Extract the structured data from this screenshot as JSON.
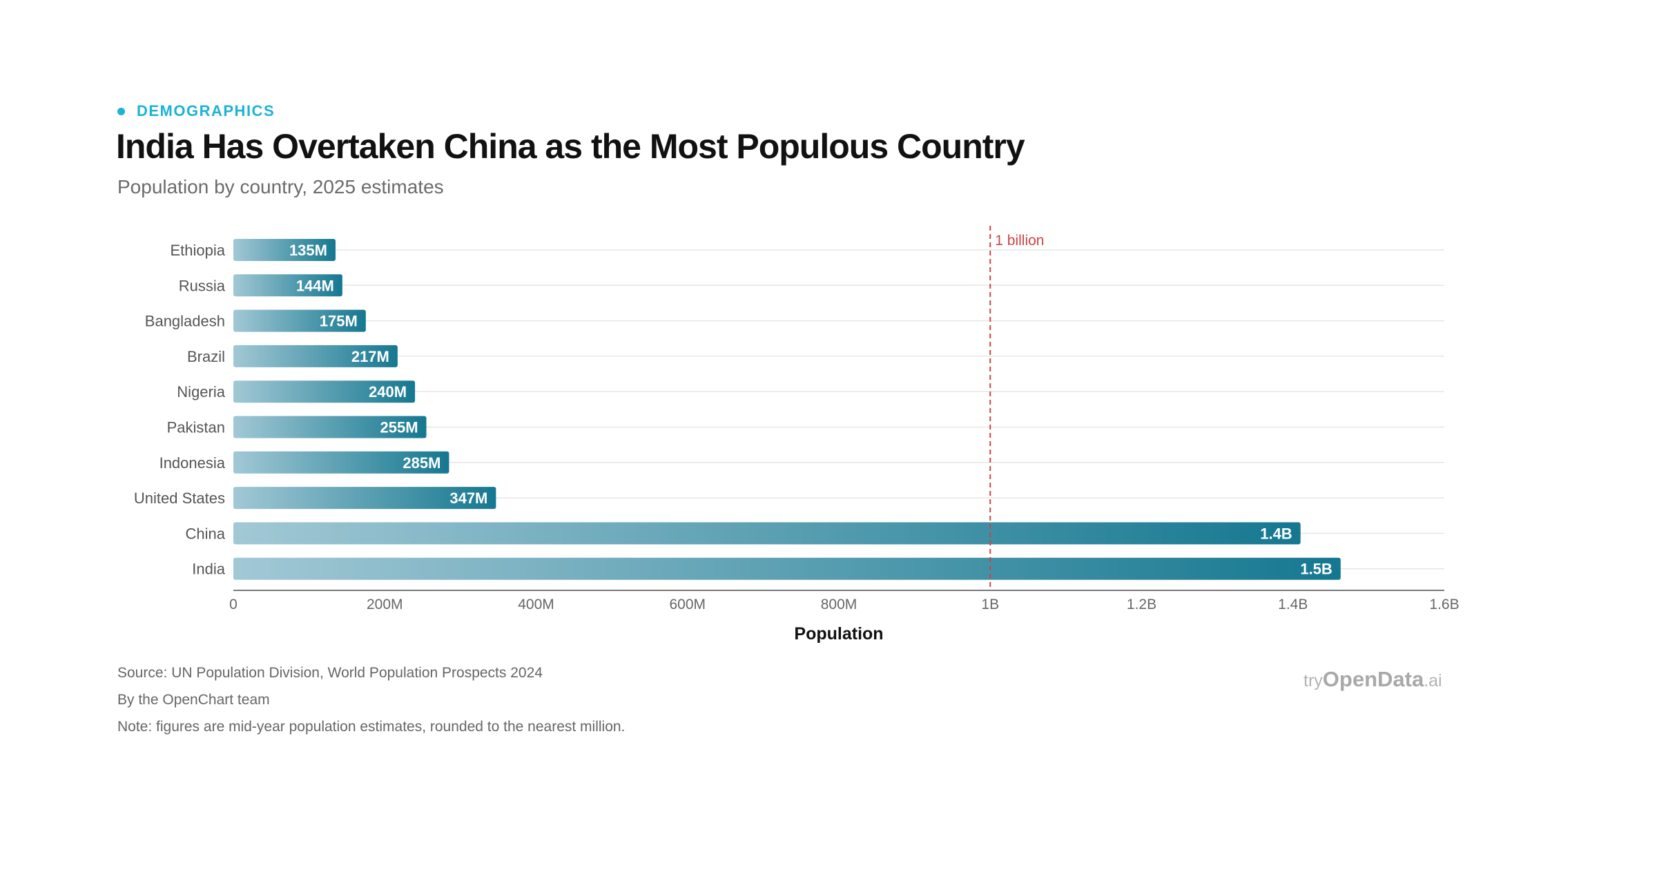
{
  "header": {
    "kicker": "DEMOGRAPHICS",
    "title": "India Has Overtaken China as the Most Populous Country",
    "subtitle": "Population by country, 2025 estimates"
  },
  "colors": {
    "accent": "#1bb3d6",
    "bar_start": "#a2c8d5",
    "bar_end": "#157890",
    "reference_line": "#cc4444"
  },
  "chart_data": {
    "type": "bar",
    "orientation": "horizontal",
    "categories": [
      "Ethiopia",
      "Russia",
      "Bangladesh",
      "Brazil",
      "Nigeria",
      "Pakistan",
      "Indonesia",
      "United States",
      "China",
      "India"
    ],
    "values": [
      135000000,
      144000000,
      175000000,
      217000000,
      240000000,
      255000000,
      285000000,
      347000000,
      1410000000,
      1463000000
    ],
    "value_labels": [
      "135M",
      "144M",
      "175M",
      "217M",
      "240M",
      "255M",
      "285M",
      "347M",
      "1.4B",
      "1.5B"
    ],
    "xlabel": "Population",
    "xlim": [
      0,
      1600000000
    ],
    "x_ticks": [
      0,
      200000000,
      400000000,
      600000000,
      800000000,
      1000000000,
      1200000000,
      1400000000,
      1600000000
    ],
    "x_tick_labels": [
      "0",
      "200M",
      "400M",
      "600M",
      "800M",
      "1B",
      "1.2B",
      "1.4B",
      "1.6B"
    ],
    "reference_line": {
      "value": 1000000000,
      "label": "1 billion"
    },
    "grid": true
  },
  "footer": {
    "source": "Source: UN Population Division, World Population Prospects 2024",
    "byline": "By the OpenChart team",
    "note": "Note: figures are mid-year population estimates, rounded to the nearest million."
  },
  "brand": {
    "prefix": "try",
    "name": "OpenData",
    "suffix": ".ai"
  }
}
